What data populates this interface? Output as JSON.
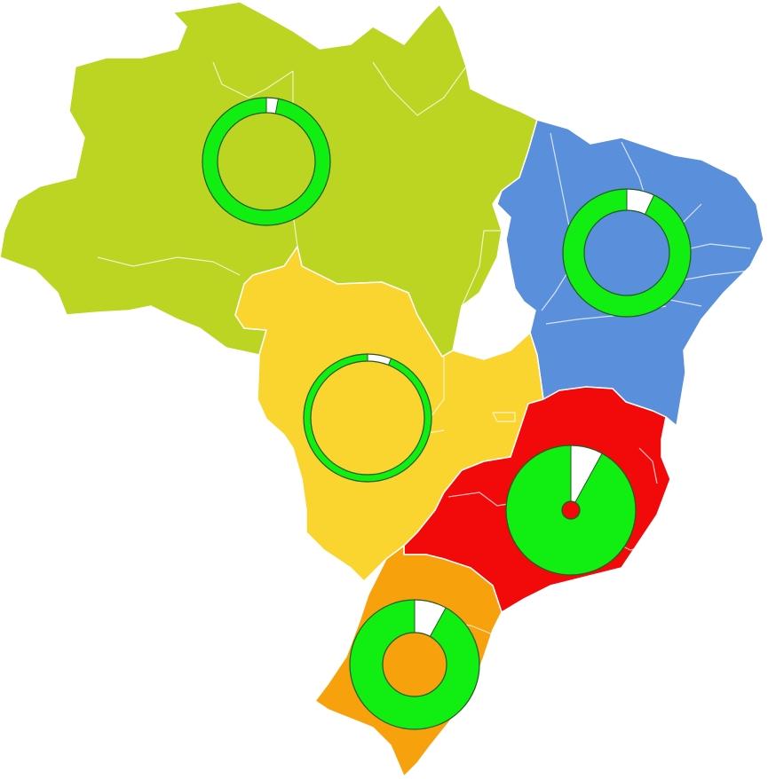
{
  "map": {
    "regions": [
      {
        "id": "north",
        "color": "#bcd422"
      },
      {
        "id": "northeast",
        "color": "#5a8fdb"
      },
      {
        "id": "central-west",
        "color": "#fad42f"
      },
      {
        "id": "southeast",
        "color": "#f20a0a"
      },
      {
        "id": "south",
        "color": "#f7a10c"
      }
    ],
    "indicator_colors": {
      "filled": "#11ee11",
      "remainder": "#ffffff",
      "outline": "#1f5a1f"
    },
    "indicators": [
      {
        "region": "north",
        "share": 0.97
      },
      {
        "region": "northeast",
        "share": 0.93
      },
      {
        "region": "central-west",
        "share": 0.94
      },
      {
        "region": "southeast",
        "share": 0.92
      },
      {
        "region": "south",
        "share": 0.92
      }
    ]
  }
}
